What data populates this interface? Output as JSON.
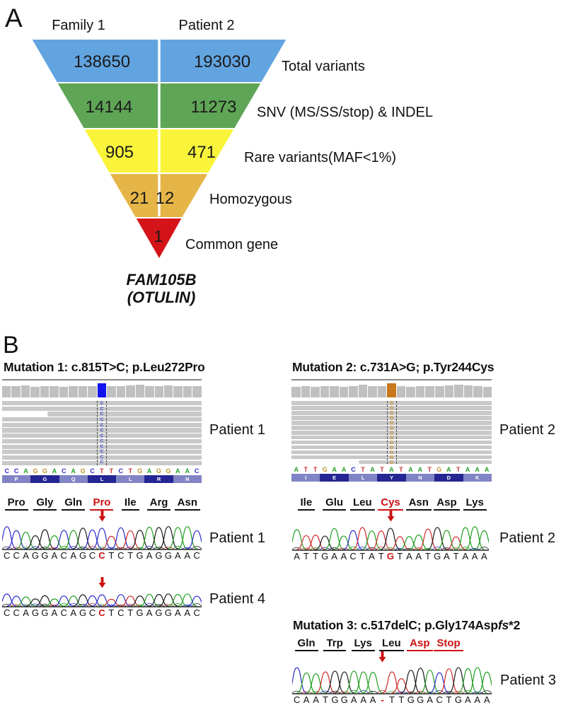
{
  "panel_a": {
    "label": "A",
    "column_headers": [
      "Family 1",
      "Patient 2"
    ],
    "funnel_rows": [
      {
        "label": "Total variants",
        "values": [
          "138650",
          "193030"
        ],
        "color": "#62a4e0"
      },
      {
        "label": "SNV (MS/SS/stop) & INDEL",
        "values": [
          "14144",
          "11273"
        ],
        "color": "#5ea556"
      },
      {
        "label": "Rare variants(MAF<1%)",
        "values": [
          "905",
          "471"
        ],
        "color": "#f9f43a"
      },
      {
        "label": "Homozygous",
        "values": [
          "21",
          "12"
        ],
        "color": "#e5b547"
      },
      {
        "label": "Common gene",
        "values": [
          "1"
        ],
        "color": "#d41418"
      }
    ],
    "result_gene_line1": "FAM105B",
    "result_gene_line2": "(OTULIN)"
  },
  "chart_data": {
    "type": "table",
    "title": "Variant filtering funnel",
    "categories": [
      "Total variants",
      "SNV (MS/SS/stop) & INDEL",
      "Rare variants(MAF<1%)",
      "Homozygous",
      "Common gene"
    ],
    "series": [
      {
        "name": "Family 1",
        "values": [
          138650,
          14144,
          905,
          21,
          1
        ]
      },
      {
        "name": "Patient 2",
        "values": [
          193030,
          11273,
          471,
          12,
          1
        ]
      }
    ],
    "result": "FAM105B (OTULIN)"
  },
  "panel_b": {
    "label": "B",
    "base_colors": {
      "A": "#2aa02a",
      "C": "#2e2ec8",
      "G": "#be9530",
      "T": "#c83232"
    },
    "trace_colors": {
      "A": "#1f9e1f",
      "C": "#2a2acc",
      "G": "#1a1a1a",
      "T": "#cc2a2a"
    },
    "accent_red": "#cc1111",
    "aa_box_light": "#8184c4",
    "aa_box_dark": "#252594",
    "mutations": [
      {
        "title": "Mutation 1: c.815T>C; p.Leu272Pro",
        "igv": {
          "patient_label": "Patient 1",
          "mut_base": "C",
          "mut_letter_color": "#3c3ccd",
          "coverage_mut_color": "#1414ee",
          "ref_seq": "CCAGGACAGCTTCTGAGGAAC",
          "aa_track": "PGQLLRN",
          "mut_index": 10
        },
        "chromatograms": [
          {
            "patient_label": "Patient 1",
            "aa_labels": [
              "Pro",
              "Gly",
              "Gln",
              "Pro",
              "Ile",
              "Arg",
              "Asn"
            ],
            "aa_red": [
              3
            ],
            "seq": "CCAGGACAGCCTCTGAGGAAC",
            "seq_red": [
              10
            ],
            "arrow_index": 10
          },
          {
            "patient_label": "Patient 4",
            "aa_labels": [],
            "aa_red": [],
            "seq": "CCAGGACAGCCTCTGAGGAAC",
            "seq_red": [
              10
            ],
            "arrow_index": 10
          }
        ]
      },
      {
        "title": "Mutation 2: c.731A>G; p.Tyr244Cys",
        "igv": {
          "patient_label": "Patient 2",
          "mut_base": "G",
          "mut_letter_color": "#c8821e",
          "coverage_mut_color": "#c8791b",
          "ref_seq": "ATTGAACTATATAATGATAAA",
          "aa_track": "IELYNDK",
          "mut_index": 10
        },
        "chromatograms": [
          {
            "patient_label": "Patient 2",
            "aa_labels": [
              "Ile",
              "Glu",
              "Leu",
              "Cys",
              "Asn",
              "Asp",
              "Lys"
            ],
            "aa_red": [
              3
            ],
            "seq": "ATTGAACTATGTAATGATAAA",
            "seq_red": [
              10
            ],
            "arrow_index": 10
          }
        ]
      },
      {
        "title_parts": {
          "prefix": "Mutation 3: c.517delC; p.Gly174Asp",
          "italic": "fs",
          "suffix": "*2"
        },
        "chromatograms": [
          {
            "patient_label": "Patient 3",
            "aa_labels": [
              "Gln",
              "Trp",
              "Lys",
              "Leu",
              "Asp",
              "Stop"
            ],
            "aa_red": [
              4,
              5
            ],
            "seq": "CAATGGAAA-TTGGACTGAAA",
            "seq_red": [
              9
            ],
            "arrow_index": 9
          }
        ]
      }
    ]
  }
}
